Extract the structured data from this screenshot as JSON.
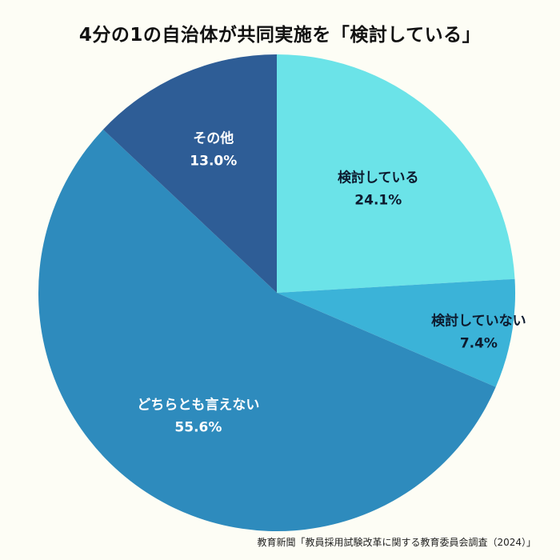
{
  "chart_data": {
    "type": "pie",
    "title": "4分の1の自治体が共同実施を「検討している」",
    "categories": [
      "検討している",
      "検討していない",
      "どちらとも言えない",
      "その他"
    ],
    "values": [
      24.1,
      7.4,
      55.6,
      13.0
    ],
    "value_labels": [
      "24.1%",
      "7.4%",
      "55.6%",
      "13.0%"
    ],
    "colors": [
      "#6be3e8",
      "#3bb3d8",
      "#2e8bbd",
      "#2e5d96"
    ],
    "label_colors": [
      "#0d1a2e",
      "#0d1a2e",
      "#ffffff",
      "#ffffff"
    ],
    "start": "12 o'clock, clockwise",
    "source": "教育新聞「教員採用試験改革に関する教育委員会調査（2024）」"
  }
}
